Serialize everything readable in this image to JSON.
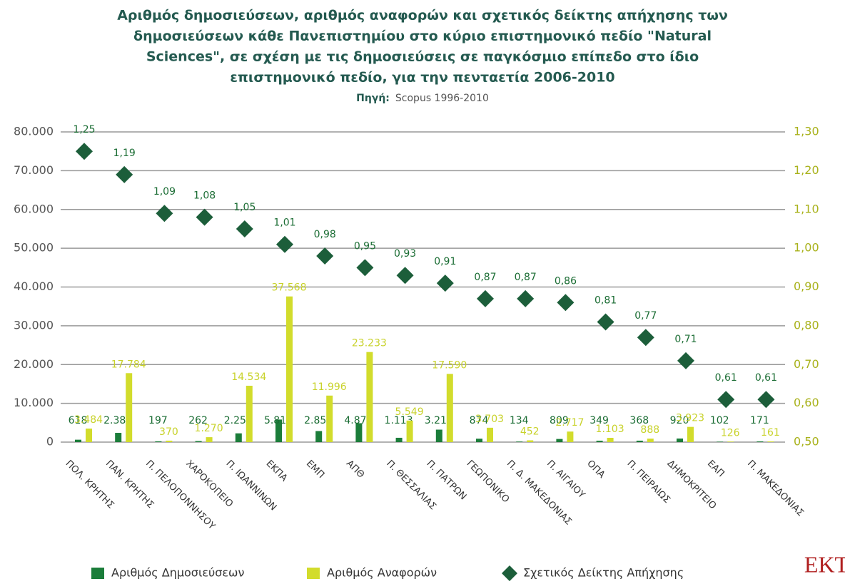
{
  "chart_data": {
    "type": "bar",
    "title": [
      "Αριθμός δημοσιεύσεων, αριθμός αναφορών και σχετικός δείκτης απήχησης των",
      "δημοσιεύσεων κάθε Πανεπιστημίου στο κύριο επιστημονικό πεδίο \"Natural",
      "Sciences\", σε σχέση με τις δημοσιεύσεις σε παγκόσμιο επίπεδο στο ίδιο",
      "επιστημονικό πεδίο, για την πενταετία 2006-2010"
    ],
    "source_label": "Πηγή:",
    "source": "Scopus 1996-2010",
    "logo": "EKT",
    "categories": [
      "ΠΟΛ. ΚΡΗΤΗΣ",
      "ΠΑΝ. ΚΡΗΤΗΣ",
      "Π. ΠΕΛΟΠΟΝΝΗΣΟΥ",
      "ΧΑΡΟΚΟΠΕΙΟ",
      "Π. ΙΩΑΝΝΙΝΩΝ",
      "ΕΚΠΑ",
      "ΕΜΠ",
      "ΑΠΘ",
      "Π. ΘΕΣΣΑΛΙΑΣ",
      "Π. ΠΑΤΡΩΝ",
      "ΓΕΩΠΟΝΙΚΟ",
      "Π. Δ. ΜΑΚΕΔΟΝΙΑΣ",
      "Π. ΑΙΓΑΙΟΥ",
      "ΟΠΑ",
      "Π. ΠΕΙΡΑΙΩΣ",
      "ΔΗΜΟΚΡΙΤΕΙΟ",
      "ΕΑΠ",
      "Π. ΜΑΚΕΔΟΝΙΑΣ"
    ],
    "series": [
      {
        "name": "Αριθμός Δημοσιεύσεων",
        "color": "#1b7d3a",
        "values": [
          618,
          2387,
          197,
          262,
          2259,
          5814,
          2852,
          4877,
          1113,
          3215,
          874,
          134,
          809,
          349,
          368,
          920,
          102,
          171
        ],
        "value_labels": [
          "618",
          "2.387",
          "197",
          "262",
          "2.259",
          "5.814",
          "2.852",
          "4.877",
          "1.113",
          "3.215",
          "874",
          "134",
          "809",
          "349",
          "368",
          "920",
          "102",
          "171"
        ]
      },
      {
        "name": "Αριθμός Αναφορών",
        "color": "#d2dc2c",
        "values": [
          3484,
          17784,
          370,
          1270,
          14534,
          37568,
          11996,
          23233,
          5549,
          17590,
          3703,
          452,
          2717,
          1103,
          888,
          3923,
          126,
          161
        ],
        "value_labels": [
          "3.484",
          "17.784",
          "370",
          "1.270",
          "14.534",
          "37.568",
          "11.996",
          "23.233",
          "5.549",
          "17.590",
          "3.703",
          "452",
          "2.717",
          "1.103",
          "888",
          "3.923",
          "126",
          "161"
        ]
      },
      {
        "name": "Σχετικός Δείκτης Απήχησης",
        "color": "#1c5e3a",
        "type": "scatter",
        "axis": "y2",
        "values": [
          1.25,
          1.19,
          1.09,
          1.08,
          1.05,
          1.01,
          0.98,
          0.95,
          0.93,
          0.91,
          0.87,
          0.87,
          0.86,
          0.81,
          0.77,
          0.71,
          0.61,
          0.61
        ],
        "value_labels": [
          "1,25",
          "1,19",
          "1,09",
          "1,08",
          "1,05",
          "1,01",
          "0,98",
          "0,95",
          "0,93",
          "0,91",
          "0,87",
          "0,87",
          "0,86",
          "0,81",
          "0,77",
          "0,71",
          "0,61",
          "0,61"
        ]
      }
    ],
    "ylim": [
      0,
      80000
    ],
    "yticks": [
      0,
      {
        "value": 10000,
        "label": "10.000"
      },
      {
        "value": 20000,
        "label": "20.000"
      },
      {
        "value": 30000,
        "label": "30.000"
      },
      {
        "value": 40000,
        "label": "40.000"
      },
      {
        "value": 50000,
        "label": "50.000"
      },
      {
        "value": 60000,
        "label": "60.000"
      },
      {
        "value": 70000,
        "label": "70.000"
      },
      {
        "value": 80000,
        "label": "80.000"
      }
    ],
    "y2lim": [
      0.5,
      1.3
    ],
    "y2ticks": [
      {
        "value": 0.5,
        "label": "0,50"
      },
      {
        "value": 0.6,
        "label": "0,60"
      },
      {
        "value": 0.7,
        "label": "0,70"
      },
      {
        "value": 0.8,
        "label": "0,80"
      },
      {
        "value": 0.9,
        "label": "0,90"
      },
      {
        "value": 1.0,
        "label": "1,00"
      },
      {
        "value": 1.1,
        "label": "1,10"
      },
      {
        "value": 1.2,
        "label": "1,20"
      },
      {
        "value": 1.3,
        "label": "1,30"
      }
    ],
    "grid": true
  }
}
